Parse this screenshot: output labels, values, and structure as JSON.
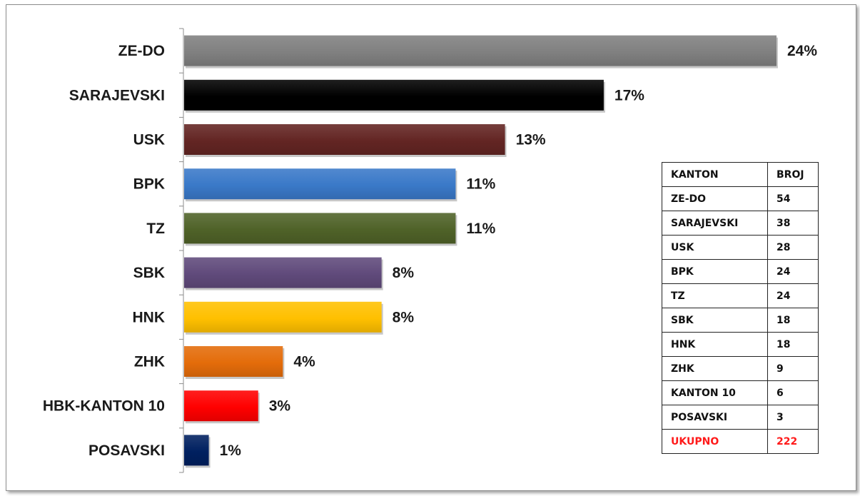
{
  "chart_data": {
    "type": "bar",
    "orientation": "horizontal",
    "categories": [
      "ZE-DO",
      "SARAJEVSKI",
      "USK",
      "BPK",
      "TZ",
      "SBK",
      "HNK",
      "ZHK",
      "HBK-KANTON 10",
      "POSAVSKI"
    ],
    "values": [
      24,
      17,
      13,
      11,
      11,
      8,
      8,
      4,
      3,
      1
    ],
    "value_labels": [
      "24%",
      "17%",
      "13%",
      "11%",
      "11%",
      "8%",
      "8%",
      "4%",
      "3%",
      "1%"
    ],
    "colors": [
      "#808080",
      "#000000",
      "#632523",
      "#3a79c8",
      "#4f6228",
      "#604a7b",
      "#ffc000",
      "#e46c0a",
      "#ff0000",
      "#002060"
    ],
    "xlim": [
      0,
      24
    ],
    "grid": false,
    "legend": "none"
  },
  "table": {
    "headers": [
      "KANTON",
      "BROJ"
    ],
    "rows": [
      [
        "ZE-DO",
        "54"
      ],
      [
        "SARAJEVSKI",
        "38"
      ],
      [
        "USK",
        "28"
      ],
      [
        "BPK",
        "24"
      ],
      [
        "TZ",
        "24"
      ],
      [
        "SBK",
        "18"
      ],
      [
        "HNK",
        "18"
      ],
      [
        "ZHK",
        "9"
      ],
      [
        "KANTON 10",
        "6"
      ],
      [
        "POSAVSKI",
        "3"
      ]
    ],
    "total": [
      "UKUPNO",
      "222"
    ],
    "total_color": "#ff1a1a"
  }
}
